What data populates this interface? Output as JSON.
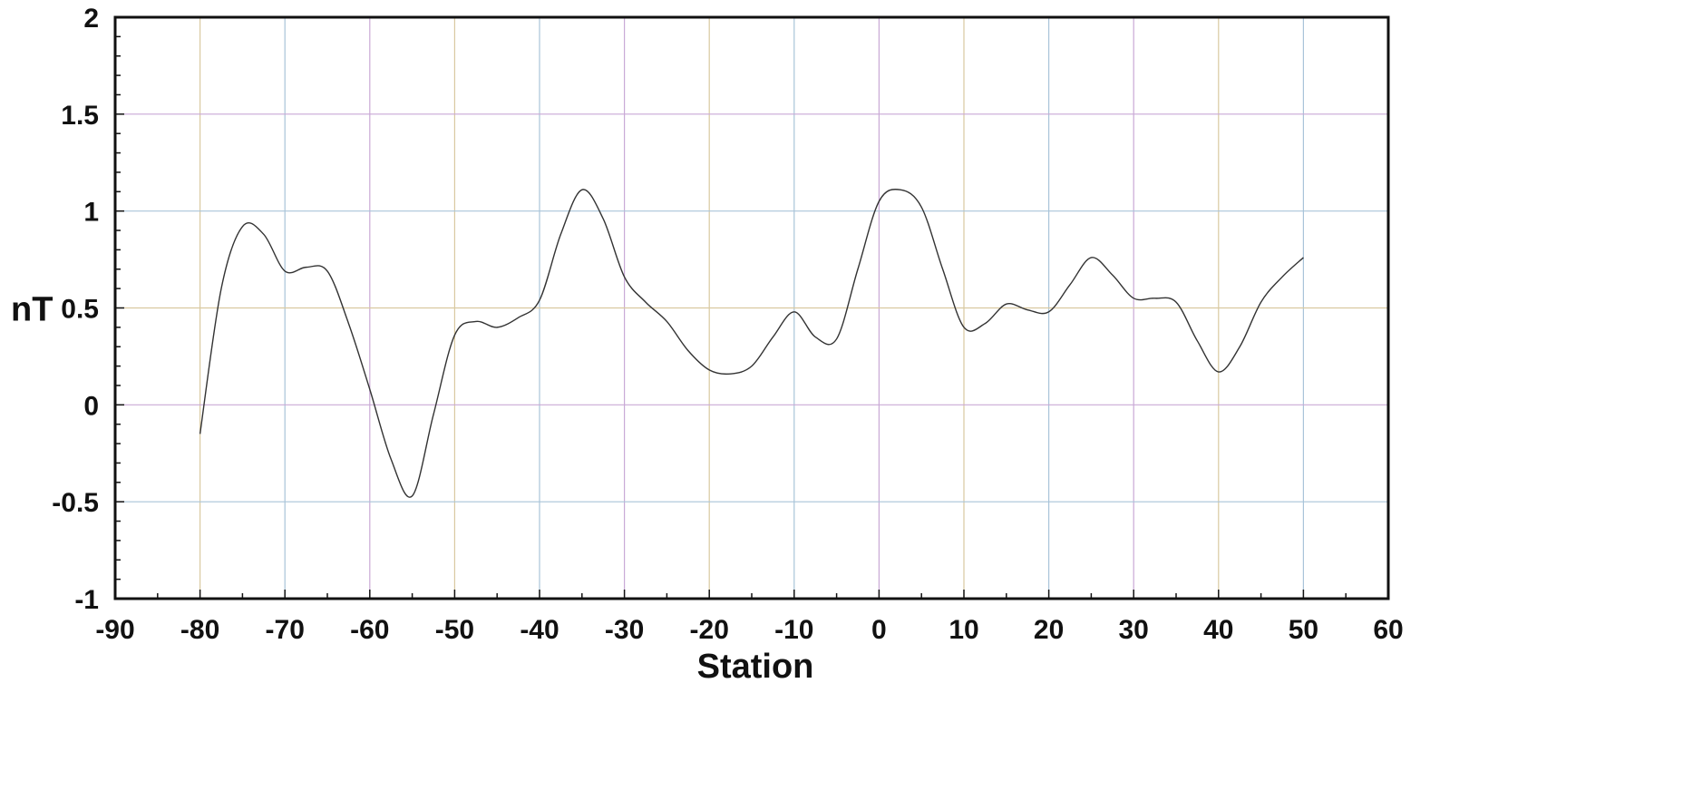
{
  "chart_data": {
    "type": "line",
    "title": "",
    "xlabel": "Station",
    "ylabel": "nT",
    "xlim": [
      -90,
      60
    ],
    "ylim": [
      -1,
      2
    ],
    "xticks": [
      -90,
      -80,
      -70,
      -60,
      -50,
      -40,
      -30,
      -20,
      -10,
      0,
      10,
      20,
      30,
      40,
      50,
      60
    ],
    "yticks": [
      -1,
      -0.5,
      0,
      0.5,
      1,
      1.5,
      2
    ],
    "xtick_labels": [
      "-90",
      "-80",
      "-70",
      "-60",
      "-50",
      "-40",
      "-30",
      "-20",
      "-10",
      "0",
      "10",
      "20",
      "30",
      "40",
      "50",
      "60"
    ],
    "ytick_labels": [
      "-1",
      "-0.5",
      "0",
      "0.5",
      "1",
      "1.5",
      "2"
    ],
    "grid": true,
    "grid_colors": [
      "#c9a9d6",
      "#d9c9a0",
      "#a9c4d9"
    ],
    "line_color": "#333333",
    "series": [
      {
        "x": [
          -80,
          -77.5,
          -75,
          -72.5,
          -70,
          -67.5,
          -65,
          -62.5,
          -60,
          -57.5,
          -55,
          -52.5,
          -50,
          -47.5,
          -45,
          -42.5,
          -40,
          -37.5,
          -35,
          -32.5,
          -30,
          -27.5,
          -25,
          -22.5,
          -20,
          -17.5,
          -15,
          -12.5,
          -10,
          -7.5,
          -5,
          -2.5,
          0,
          2.5,
          5,
          7.5,
          10,
          12.5,
          15,
          17.5,
          20,
          22.5,
          25,
          27.5,
          30,
          32.5,
          35,
          37.5,
          40,
          42.5,
          45,
          47.5,
          50
        ],
        "y": [
          -0.15,
          0.6,
          0.92,
          0.88,
          0.69,
          0.71,
          0.69,
          0.42,
          0.08,
          -0.28,
          -0.47,
          -0.05,
          0.36,
          0.43,
          0.4,
          0.45,
          0.54,
          0.88,
          1.11,
          0.96,
          0.66,
          0.53,
          0.43,
          0.28,
          0.18,
          0.16,
          0.2,
          0.35,
          0.48,
          0.35,
          0.34,
          0.7,
          1.05,
          1.11,
          1.02,
          0.7,
          0.4,
          0.42,
          0.52,
          0.49,
          0.48,
          0.62,
          0.76,
          0.67,
          0.55,
          0.55,
          0.53,
          0.33,
          0.17,
          0.3,
          0.53,
          0.66,
          0.76
        ]
      }
    ]
  }
}
